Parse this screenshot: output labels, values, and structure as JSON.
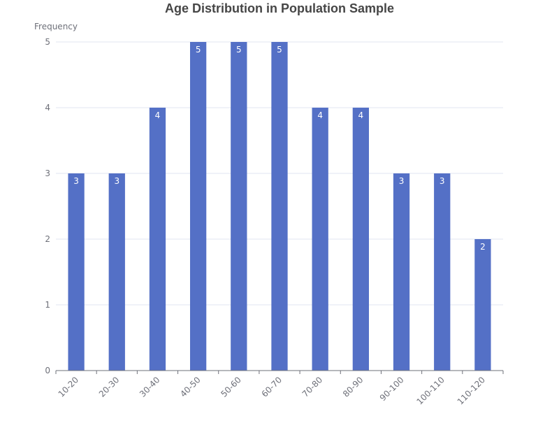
{
  "chart_data": {
    "type": "bar",
    "title": "Age Distribution in Population Sample",
    "xlabel": "",
    "ylabel": "Frequency",
    "categories": [
      "10-20",
      "20-30",
      "30-40",
      "40-50",
      "50-60",
      "60-70",
      "70-80",
      "80-90",
      "90-100",
      "100-110",
      "110-120"
    ],
    "values": [
      3,
      3,
      4,
      5,
      5,
      5,
      4,
      4,
      3,
      3,
      2
    ],
    "ylim": [
      0,
      5
    ],
    "yticks": [
      0,
      1,
      2,
      3,
      4,
      5
    ],
    "grid": true,
    "data_labels": true,
    "bar_color": "#5470c6",
    "label_color": "#ffffff",
    "grid_color": "#e0e6f1",
    "axis_color": "#6e7079",
    "title_color": "#464646"
  }
}
